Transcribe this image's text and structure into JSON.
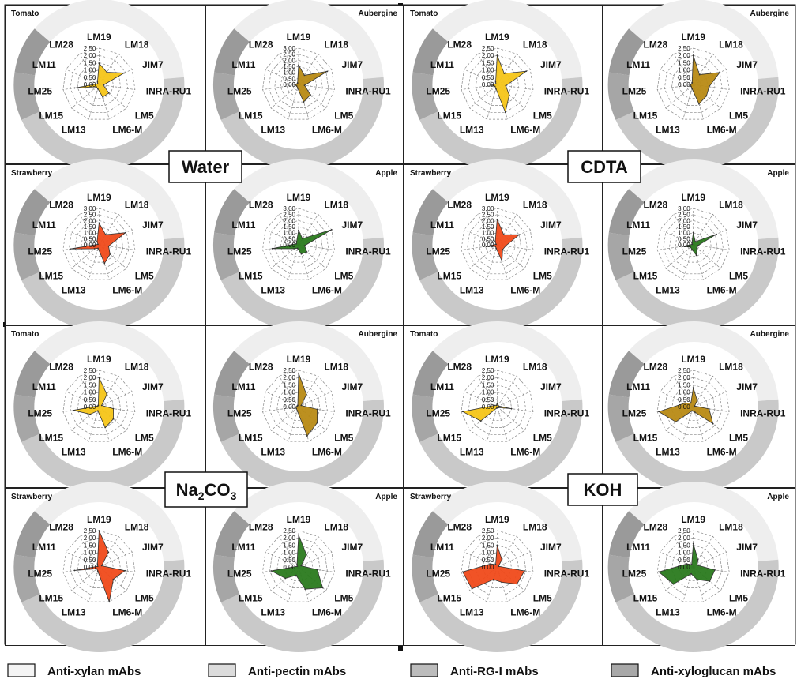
{
  "spokes": [
    "LM19",
    "LM18",
    "JIM7",
    "INRA-RU1",
    "LM5",
    "LM6-M",
    "LM13",
    "LM15",
    "LM25",
    "LM11",
    "LM28"
  ],
  "legend": [
    {
      "label": "Anti-xylan  mAbs",
      "color": "#f4f4f4"
    },
    {
      "label": "Anti-pectin mAbs",
      "color": "#dcdcdc"
    },
    {
      "label": "Anti-RG-I mAbs",
      "color": "#bcbcbc"
    },
    {
      "label": "Anti-xyloglucan  mAbs",
      "color": "#a8a8a8"
    }
  ],
  "quadrants": [
    {
      "title": "Water",
      "title_sub": ""
    },
    {
      "title": "CDTA",
      "title_sub": ""
    },
    {
      "title": "Na",
      "title_sub": "2",
      "title_tail": "CO",
      "title_sub2": "3"
    },
    {
      "title": "KOH",
      "title_sub": ""
    }
  ],
  "chart_data": [
    {
      "type": "radar",
      "quadrant": "Water",
      "title": "Tomato",
      "color": "#f5c518",
      "rmax": 2.5,
      "ticks": [
        "2.50",
        "2.00",
        "1.50",
        "1.00",
        "0.50",
        "0.00"
      ],
      "values": [
        1.45,
        1.0,
        1.9,
        0.3,
        0.9,
        0.9,
        0.3,
        0.25,
        1.7,
        0.1,
        0.2
      ]
    },
    {
      "type": "radar",
      "quadrant": "Water",
      "title": "Aubergine",
      "color": "#b88a14",
      "rmax": 3.0,
      "ticks": [
        "3.00",
        "2.50",
        "2.00",
        "1.50",
        "1.00",
        "0.50",
        "0.00"
      ],
      "values": [
        1.6,
        0.9,
        2.6,
        0.5,
        1.3,
        1.5,
        0.3,
        0.2,
        0.3,
        0.1,
        0.15
      ]
    },
    {
      "type": "radar",
      "quadrant": "CDTA",
      "title": "Tomato",
      "color": "#f5c518",
      "rmax": 2.5,
      "ticks": [
        "2.50",
        "2.00",
        "1.50",
        "1.00",
        "0.50",
        "0.00"
      ],
      "values": [
        2.0,
        0.9,
        2.2,
        0.6,
        1.1,
        2.0,
        0.3,
        0.2,
        0.4,
        0.1,
        0.2
      ]
    },
    {
      "type": "radar",
      "quadrant": "CDTA",
      "title": "Aubergine",
      "color": "#b88a14",
      "rmax": 2.5,
      "ticks": [
        "2.50",
        "2.00",
        "1.50",
        "1.00",
        "0.50",
        "0.00"
      ],
      "values": [
        2.0,
        0.8,
        2.0,
        1.1,
        1.2,
        1.4,
        0.3,
        0.2,
        0.2,
        0.1,
        0.15
      ]
    },
    {
      "type": "radar",
      "quadrant": "Water",
      "title": "Strawberry",
      "color": "#f04a1a",
      "rmax": 3.0,
      "ticks": [
        "3.00",
        "2.50",
        "2.00",
        "1.50",
        "1.00",
        "0.50",
        "0.00"
      ],
      "values": [
        1.8,
        1.0,
        2.4,
        0.8,
        1.2,
        1.6,
        0.3,
        0.5,
        2.4,
        0.1,
        0.3
      ]
    },
    {
      "type": "radar",
      "quadrant": "Water",
      "title": "Apple",
      "color": "#2a7a1e",
      "rmax": 3.0,
      "ticks": [
        "3.00",
        "2.50",
        "2.00",
        "1.50",
        "1.00",
        "0.50",
        "0.00"
      ],
      "values": [
        1.2,
        0.6,
        3.0,
        0.5,
        0.9,
        0.8,
        0.3,
        0.5,
        2.2,
        0.2,
        0.3
      ]
    },
    {
      "type": "radar",
      "quadrant": "CDTA",
      "title": "Strawberry",
      "color": "#f04a1a",
      "rmax": 3.0,
      "ticks": [
        "3.00",
        "2.50",
        "2.00",
        "1.50",
        "1.00",
        "0.50",
        "0.00"
      ],
      "values": [
        2.1,
        1.0,
        2.0,
        0.7,
        0.6,
        1.4,
        0.3,
        0.2,
        0.9,
        0.1,
        0.3
      ]
    },
    {
      "type": "radar",
      "quadrant": "CDTA",
      "title": "Apple",
      "color": "#2a7a1e",
      "rmax": 3.0,
      "ticks": [
        "3.00",
        "2.50",
        "2.00",
        "1.50",
        "1.00",
        "0.50",
        "0.00"
      ],
      "values": [
        1.0,
        0.3,
        2.1,
        0.4,
        0.4,
        0.9,
        0.4,
        0.3,
        0.9,
        0.1,
        0.2
      ]
    },
    {
      "type": "radar",
      "quadrant": "Na2CO3",
      "title": "Tomato",
      "color": "#f5c518",
      "rmax": 2.5,
      "ticks": [
        "2.50",
        "2.00",
        "1.50",
        "1.00",
        "0.50",
        "0.00"
      ],
      "values": [
        2.0,
        1.0,
        0.2,
        1.0,
        1.3,
        1.5,
        0.3,
        0.8,
        1.8,
        0.1,
        0.1
      ]
    },
    {
      "type": "radar",
      "quadrant": "Na2CO3",
      "title": "Aubergine",
      "color": "#b88a14",
      "rmax": 2.5,
      "ticks": [
        "2.50",
        "2.00",
        "1.50",
        "1.00",
        "0.50",
        "0.00"
      ],
      "values": [
        2.3,
        1.0,
        0.2,
        1.3,
        1.7,
        2.1,
        0.3,
        0.2,
        0.2,
        0.1,
        0.1
      ]
    },
    {
      "type": "radar",
      "quadrant": "KOH",
      "title": "Tomato",
      "color": "#f5c518",
      "rmax": 2.5,
      "ticks": [
        "2.50",
        "2.00",
        "1.50",
        "1.00",
        "0.50",
        "0.00"
      ],
      "values": [
        0.2,
        0.1,
        0.1,
        1.0,
        0.1,
        0.1,
        0.1,
        1.5,
        2.4,
        0.2,
        0.1
      ]
    },
    {
      "type": "radar",
      "quadrant": "KOH",
      "title": "Aubergine",
      "color": "#b88a14",
      "rmax": 2.5,
      "ticks": [
        "2.50",
        "2.00",
        "1.50",
        "1.00",
        "0.50",
        "0.00"
      ],
      "values": [
        1.3,
        0.5,
        0.1,
        1.1,
        1.8,
        0.4,
        0.3,
        1.6,
        2.4,
        0.6,
        0.3
      ]
    },
    {
      "type": "radar",
      "quadrant": "Na2CO3",
      "title": "Strawberry",
      "color": "#f04a1a",
      "rmax": 2.5,
      "ticks": [
        "2.50",
        "2.00",
        "1.50",
        "1.00",
        "0.50",
        "0.00"
      ],
      "values": [
        2.5,
        1.2,
        0.2,
        1.8,
        1.3,
        2.5,
        0.3,
        0.2,
        1.7,
        0.1,
        0.2
      ]
    },
    {
      "type": "radar",
      "quadrant": "Na2CO3",
      "title": "Apple",
      "color": "#2a7a1e",
      "rmax": 2.5,
      "ticks": [
        "2.50",
        "2.00",
        "1.50",
        "1.00",
        "0.50",
        "0.00"
      ],
      "values": [
        2.2,
        1.0,
        0.2,
        1.3,
        2.2,
        1.6,
        0.6,
        1.2,
        1.9,
        0.1,
        0.2
      ]
    },
    {
      "type": "radar",
      "quadrant": "KOH",
      "title": "Strawberry",
      "color": "#f04a1a",
      "rmax": 2.5,
      "ticks": [
        "2.50",
        "2.00",
        "1.50",
        "1.00",
        "0.50",
        "0.00"
      ],
      "values": [
        1.5,
        0.6,
        0.1,
        1.9,
        1.8,
        1.1,
        0.9,
        2.3,
        2.4,
        0.5,
        0.2
      ]
    },
    {
      "type": "radar",
      "quadrant": "KOH",
      "title": "Apple",
      "color": "#2a7a1e",
      "rmax": 2.5,
      "ticks": [
        "2.50",
        "2.00",
        "1.50",
        "1.00",
        "0.50",
        "0.00"
      ],
      "values": [
        1.6,
        0.6,
        0.3,
        1.5,
        1.5,
        0.9,
        0.5,
        1.8,
        2.4,
        0.5,
        0.2
      ]
    }
  ]
}
